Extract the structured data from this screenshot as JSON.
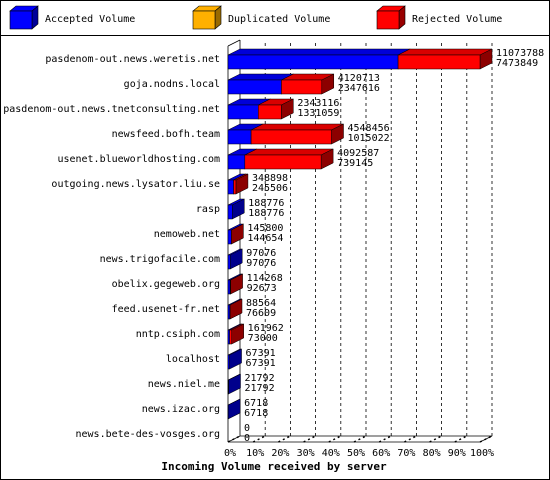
{
  "chart_data": {
    "type": "bar3d",
    "orientation": "horizontal",
    "stacked": true,
    "x_label": "Incoming Volume received by server",
    "categories": [
      "pasdenom-out.news.weretis.net",
      "goja.nodns.local",
      "pasdenom-out.news.tnetconsulting.net",
      "newsfeed.bofh.team",
      "usenet.blueworldhosting.com",
      "outgoing.news.lysator.liu.se",
      "rasp",
      "nemoweb.net",
      "news.trigofacile.com",
      "obelix.gegeweb.org",
      "feed.usenet-fr.net",
      "nntp.csiph.com",
      "localhost",
      "news.niel.me",
      "news.izac.org",
      "news.bete-des-vosges.org"
    ],
    "totals": [
      11073788,
      4120713,
      2343116,
      4548456,
      4092587,
      348898,
      188776,
      145800,
      97076,
      114268,
      88564,
      161962,
      67391,
      21792,
      6718,
      0
    ],
    "series": [
      {
        "name": "Accepted Volume",
        "color": "#0000ff",
        "values": [
          7473849,
          2347616,
          1331059,
          1015022,
          739145,
          245506,
          188776,
          144654,
          97076,
          92673,
          76609,
          73000,
          67391,
          21792,
          6718,
          0
        ]
      },
      {
        "name": "Duplicated Volume",
        "color": "#ffb000",
        "values": [
          0,
          0,
          0,
          0,
          0,
          0,
          0,
          0,
          0,
          0,
          0,
          0,
          0,
          0,
          0,
          0
        ]
      },
      {
        "name": "Rejected Volume",
        "color": "#ff0000",
        "values": [
          3599939,
          1773097,
          1012057,
          3533434,
          3353442,
          103392,
          0,
          1146,
          0,
          21595,
          11955,
          88962,
          0,
          0,
          0,
          0
        ]
      }
    ],
    "xlim": [
      0,
      11073788
    ],
    "xticks": [
      {
        "value": 0,
        "label": "0%"
      },
      {
        "value": 1107378.8,
        "label": "10%"
      },
      {
        "value": 2214757.6,
        "label": "20%"
      },
      {
        "value": 3322136.4,
        "label": "30%"
      },
      {
        "value": 4429515.2,
        "label": "40%"
      },
      {
        "value": 5536894,
        "label": "50%"
      },
      {
        "value": 6644272.8,
        "label": "60%"
      },
      {
        "value": 7751651.6,
        "label": "70%"
      },
      {
        "value": 8859030.4,
        "label": "80%"
      },
      {
        "value": 9966409.2,
        "label": "90%"
      },
      {
        "value": 11073788,
        "label": "100%"
      }
    ],
    "grid": true,
    "legend": "top"
  }
}
